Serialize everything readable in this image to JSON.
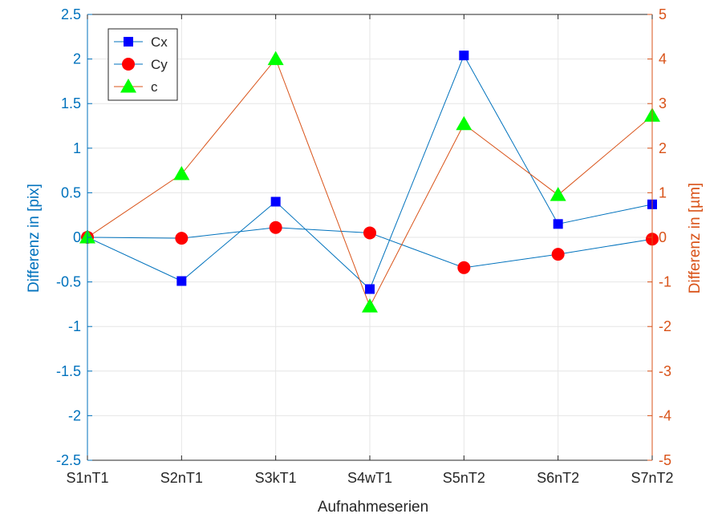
{
  "chart_data": {
    "type": "line",
    "xlabel": "Aufnahmeserien",
    "ylabel_left": "Differenz in [pix]",
    "ylabel_right": "Differenz in [µm]",
    "categories": [
      "S1nT1",
      "S2nT1",
      "S3kT1",
      "S4wT1",
      "S5nT2",
      "S6nT2",
      "S7nT2"
    ],
    "ylim_left": [
      -2.5,
      2.5
    ],
    "ylim_right": [
      -5,
      5
    ],
    "yticks_left": [
      -2.5,
      -2,
      -1.5,
      -1,
      -0.5,
      0,
      0.5,
      1,
      1.5,
      2,
      2.5
    ],
    "yticks_right": [
      -5,
      -4,
      -3,
      -2,
      -1,
      0,
      1,
      2,
      3,
      4,
      5
    ],
    "grid": true,
    "legend_position": "top-left",
    "series": [
      {
        "name": "Cx",
        "axis": "left",
        "marker": "square",
        "line_color": "#0072BD",
        "marker_color": "#0000FF",
        "values": [
          0,
          -0.49,
          0.4,
          -0.58,
          2.04,
          0.15,
          0.37
        ]
      },
      {
        "name": "Cy",
        "axis": "left",
        "marker": "circle",
        "line_color": "#0072BD",
        "marker_color": "#FF0000",
        "values": [
          0,
          -0.01,
          0.11,
          0.05,
          -0.34,
          -0.19,
          -0.02
        ]
      },
      {
        "name": "c",
        "axis": "right",
        "marker": "triangle",
        "line_color": "#D95319",
        "marker_color": "#00FF00",
        "values": [
          0.0,
          1.42,
          4.0,
          -1.55,
          2.54,
          0.95,
          2.73
        ]
      }
    ]
  },
  "colors": {
    "left_axis": "#0072BD",
    "right_axis": "#D95319",
    "grid": "#E6E6E6",
    "text": "#262626"
  }
}
